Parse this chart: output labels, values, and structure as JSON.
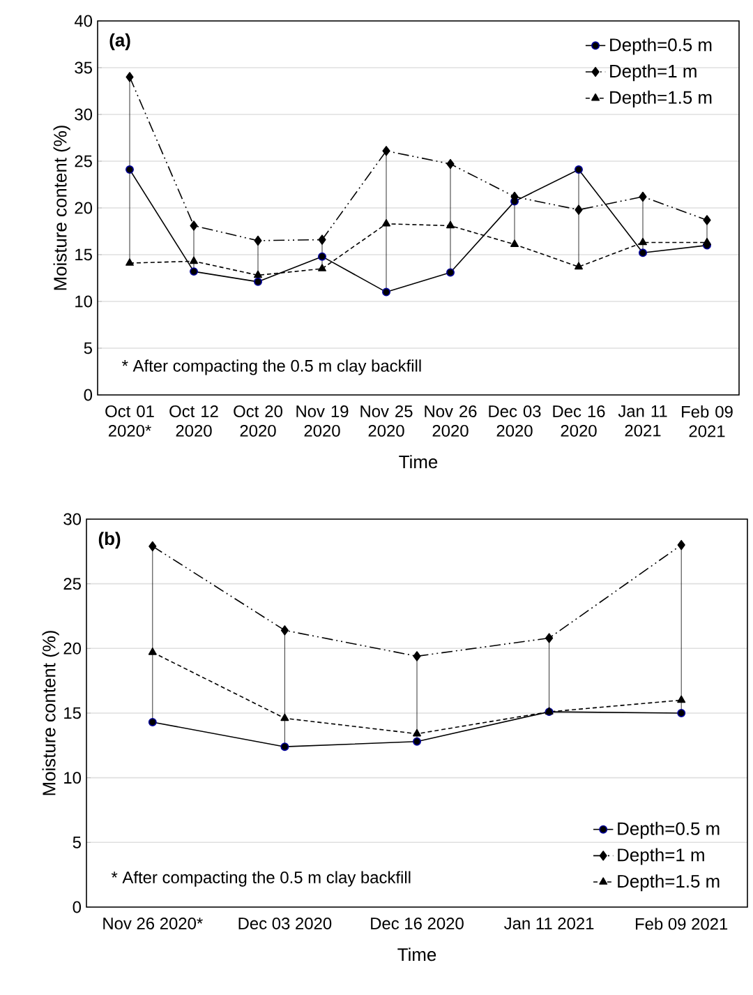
{
  "chart_data": [
    {
      "type": "line",
      "xlabel": "Time",
      "ylabel": "Moisture content (%)",
      "categories": [
        "Oct 01 2020*",
        "Oct 12 2020",
        "Oct 20 2020",
        "Nov 19 2020",
        "Nov 25 2020",
        "Nov 26 2020",
        "Dec 03 2020",
        "Dec 16 2020",
        "Jan 11 2021",
        "Feb 09 2021"
      ],
      "ylim": [
        0,
        40
      ],
      "yticks": [
        0,
        5,
        10,
        15,
        20,
        25,
        30,
        35,
        40
      ],
      "grid": "y",
      "legend": "top right",
      "annotations": [
        "(a)",
        "* After compacting the 0.5 m clay backfill"
      ],
      "series": [
        {
          "name": "Depth=0.5 m",
          "color": "#000000",
          "marker": "circle",
          "line_style": "solid",
          "values": [
            24.1,
            13.2,
            12.1,
            14.8,
            11.0,
            13.1,
            20.7,
            24.1,
            15.2,
            16.0
          ],
          "errors": [
            [
              14.1,
              34.0
            ],
            [
              13.2,
              18.1
            ],
            [
              12.1,
              16.5
            ],
            [
              13.5,
              16.6
            ],
            [
              11.0,
              26.1
            ],
            [
              13.1,
              24.7
            ],
            [
              16.1,
              21.2
            ],
            [
              13.7,
              24.1
            ],
            [
              15.2,
              21.2
            ],
            [
              16.0,
              18.7
            ]
          ]
        },
        {
          "name": "Depth=1 m",
          "color": "#000000",
          "marker": "diamond",
          "line_style": "dotted",
          "values": [
            34.0,
            18.1,
            16.5,
            16.6,
            26.1,
            24.7,
            21.2,
            19.8,
            21.2,
            18.7
          ]
        },
        {
          "name": "Depth=1.5 m",
          "color": "#000000",
          "marker": "triangle",
          "line_style": "dashed",
          "values": [
            14.1,
            14.3,
            12.8,
            13.5,
            18.3,
            18.1,
            16.1,
            13.7,
            16.3,
            16.3
          ]
        }
      ]
    },
    {
      "type": "line",
      "xlabel": "Time",
      "ylabel": "Moisture content (%)",
      "categories": [
        "Nov 26 2020*",
        "Dec 03 2020",
        "Dec 16 2020",
        "Jan 11 2021",
        "Feb 09 2021"
      ],
      "ylim": [
        0,
        30
      ],
      "yticks": [
        0,
        5,
        10,
        15,
        20,
        25,
        30
      ],
      "grid": "y",
      "legend": "bottom right",
      "annotations": [
        "(b)",
        "* After compacting the 0.5 m clay backfill"
      ],
      "series": [
        {
          "name": "Depth=0.5 m",
          "color": "#000000",
          "marker": "circle",
          "line_style": "solid",
          "values": [
            14.3,
            12.4,
            12.8,
            15.1,
            15.0
          ],
          "errors": [
            [
              14.3,
              27.9
            ],
            [
              12.4,
              21.4
            ],
            [
              12.8,
              19.4
            ],
            [
              15.1,
              20.8
            ],
            [
              15.0,
              28.0
            ]
          ]
        },
        {
          "name": "Depth=1 m",
          "color": "#000000",
          "marker": "diamond",
          "line_style": "dotted",
          "values": [
            27.9,
            21.4,
            19.4,
            20.8,
            28.0
          ]
        },
        {
          "name": "Depth=1.5 m",
          "color": "#000000",
          "marker": "triangle",
          "line_style": "dashed",
          "values": [
            19.7,
            14.6,
            13.4,
            15.1,
            16.0
          ]
        }
      ]
    }
  ]
}
